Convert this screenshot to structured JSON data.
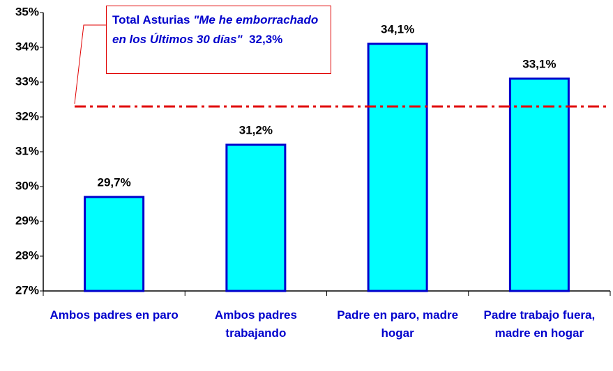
{
  "chart_data": {
    "type": "bar",
    "categories": [
      "Ambos padres en paro",
      "Ambos padres trabajando",
      "Padre en paro, madre hogar",
      "Padre trabajo fuera, madre en hogar"
    ],
    "values": [
      29.7,
      31.2,
      34.1,
      33.1
    ],
    "value_labels": [
      "29,7%",
      "31,2%",
      "34,1%",
      "33,1%"
    ],
    "color": "#00ffff",
    "edge_color": "#0000cc",
    "ylim": [
      27,
      35
    ],
    "yticks": [
      {
        "value": 27,
        "label": "27%"
      },
      {
        "value": 28,
        "label": "28%"
      },
      {
        "value": 29,
        "label": "29%"
      },
      {
        "value": 30,
        "label": "30%"
      },
      {
        "value": 31,
        "label": "31%"
      },
      {
        "value": 32,
        "label": "32%"
      },
      {
        "value": 33,
        "label": "33%"
      },
      {
        "value": 34,
        "label": "34%"
      },
      {
        "value": 35,
        "label": "35%"
      }
    ],
    "grid": false,
    "reference_line": {
      "value": 32.3,
      "color": "#e00000",
      "label_prefix": "Total Asturias",
      "label_quote": "\"Me he emborrachado en los Últimos 30 días\"",
      "value_label": "32,3%"
    }
  }
}
